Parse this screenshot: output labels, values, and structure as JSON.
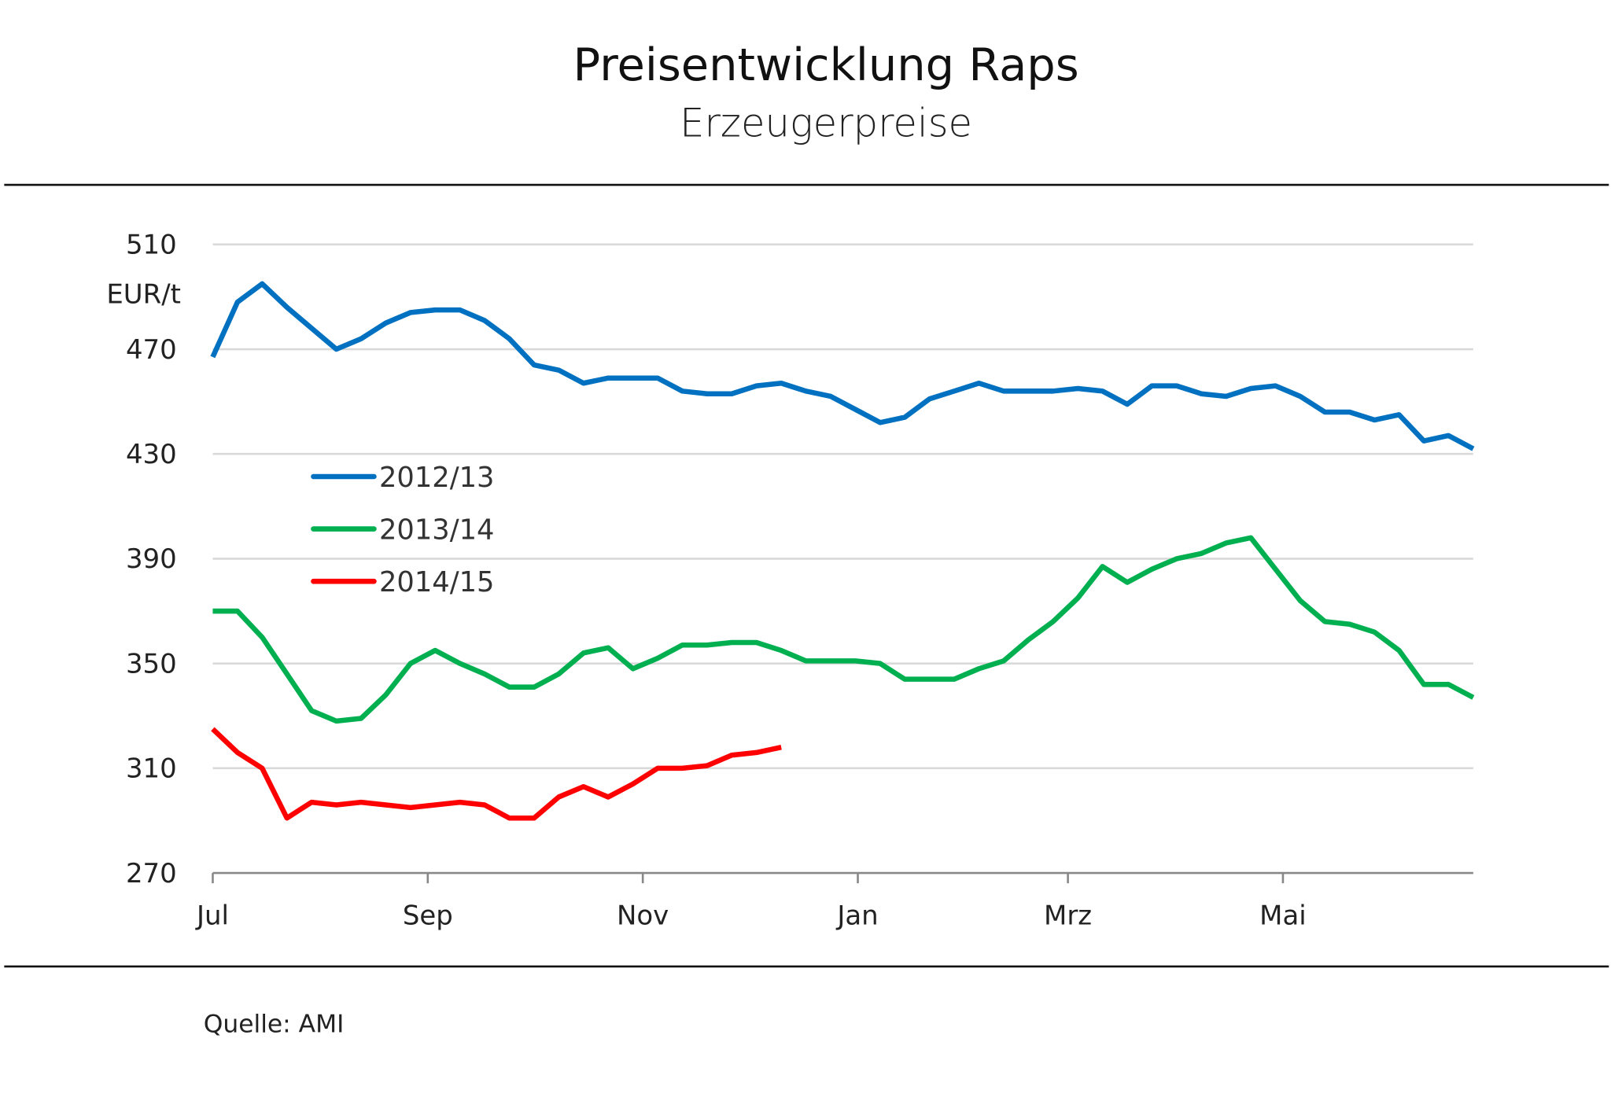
{
  "chart_data": {
    "type": "line",
    "title": "Preisentwicklung Raps",
    "subtitle": "Erzeugerpreise",
    "ylabel": "EUR/t",
    "xlabel": "",
    "ylim": [
      270,
      510
    ],
    "yticks": [
      "510",
      "470",
      "430",
      "390",
      "350",
      "310",
      "270"
    ],
    "ytick_values": [
      510,
      470,
      430,
      390,
      350,
      310,
      270
    ],
    "xticks": [
      "Jul",
      "Sep",
      "Nov",
      "Jan",
      "Mrz",
      "Mai"
    ],
    "xtick_weeks": [
      0,
      8.7,
      17.4,
      26.1,
      34.6,
      43.3
    ],
    "x_unit": "week of marketing year (Jul–Jun)",
    "grid": true,
    "legend_position": "center-left",
    "series": [
      {
        "name": "2012/13",
        "color": "#0070C0",
        "values": [
          467,
          488,
          495,
          486,
          478,
          470,
          474,
          480,
          484,
          485,
          485,
          481,
          474,
          464,
          462,
          457,
          459,
          459,
          459,
          454,
          453,
          453,
          456,
          457,
          454,
          452,
          447,
          442,
          444,
          451,
          454,
          457,
          454,
          454,
          454,
          455,
          454,
          449,
          456,
          456,
          453,
          452,
          455,
          456,
          452,
          446,
          446,
          443,
          445,
          435,
          437,
          432
        ]
      },
      {
        "name": "2013/14",
        "color": "#00B050",
        "values": [
          370,
          370,
          360,
          346,
          332,
          328,
          329,
          338,
          350,
          355,
          350,
          346,
          341,
          341,
          346,
          354,
          356,
          348,
          352,
          357,
          357,
          358,
          358,
          355,
          351,
          351,
          351,
          350,
          344,
          344,
          344,
          348,
          351,
          359,
          366,
          375,
          387,
          381,
          386,
          390,
          392,
          396,
          398,
          386,
          374,
          366,
          365,
          362,
          355,
          342,
          342,
          337
        ]
      },
      {
        "name": "2014/15",
        "color": "#FF0000",
        "values": [
          325,
          316,
          310,
          291,
          297,
          296,
          297,
          296,
          295,
          296,
          297,
          296,
          291,
          291,
          299,
          303,
          299,
          304,
          310,
          310,
          311,
          315,
          316,
          318
        ]
      }
    ],
    "source": "Quelle: AMI"
  }
}
